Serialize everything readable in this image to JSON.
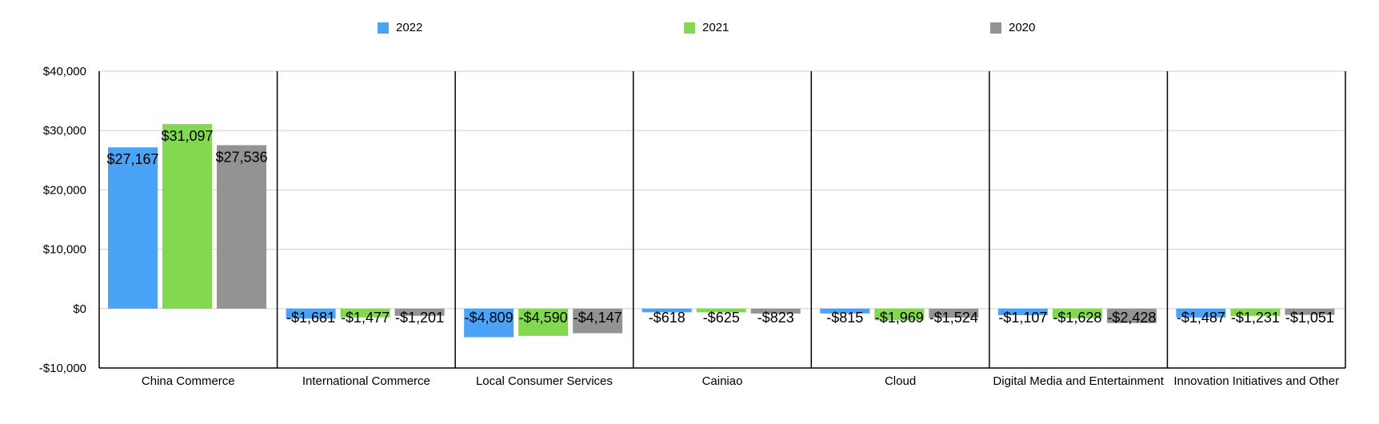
{
  "chart_data": {
    "type": "bar",
    "categories": [
      "China Commerce",
      "International Commerce",
      "Local Consumer Services",
      "Cainiao",
      "Cloud",
      "Digital Media and Entertainment",
      "Innovation Initiatives and Other"
    ],
    "series": [
      {
        "name": "2022",
        "color": "#4aa3f7",
        "values": [
          27167,
          -1681,
          -4809,
          -618,
          -815,
          -1107,
          -1487
        ],
        "labels": [
          "$27,167",
          "-$1,681",
          "-$4,809",
          "-$618",
          "-$815",
          "-$1,107",
          "-$1,487"
        ]
      },
      {
        "name": "2021",
        "color": "#82d94f",
        "values": [
          31097,
          -1477,
          -4590,
          -625,
          -1969,
          -1628,
          -1231
        ],
        "labels": [
          "$31,097",
          "-$1,477",
          "-$4,590",
          "-$625",
          "-$1,969",
          "-$1,628",
          "-$1,231"
        ]
      },
      {
        "name": "2020",
        "color": "#939393",
        "values": [
          27536,
          -1201,
          -4147,
          -823,
          -1524,
          -2428,
          -1051
        ],
        "labels": [
          "$27,536",
          "-$1,201",
          "-$4,147",
          "-$823",
          "-$1,524",
          "-$2,428",
          "-$1,051"
        ]
      }
    ],
    "yticks": [
      40000,
      30000,
      20000,
      10000,
      0,
      -10000
    ],
    "ytick_labels": [
      "$40,000",
      "$30,000",
      "$20,000",
      "$10,000",
      "$0",
      "-$10,000"
    ],
    "ylim": [
      -10000,
      40000
    ],
    "grid": true,
    "legend_position": "top"
  }
}
